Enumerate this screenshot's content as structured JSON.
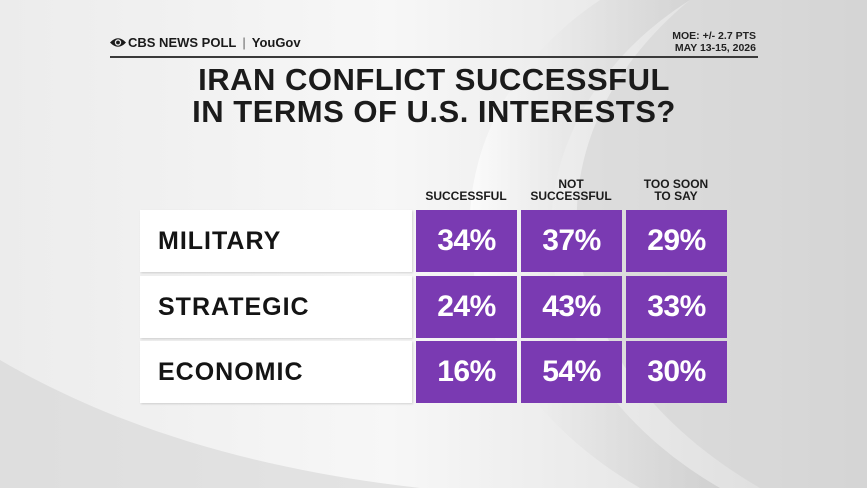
{
  "header": {
    "brand_left": "CBS NEWS POLL",
    "brand_right": "YouGov",
    "moe": "MOE: +/- 2.7 PTS",
    "dates": "MAY 13-15, 2026"
  },
  "colors": {
    "cell": "#7a3ab2",
    "label_bg": "#ffffff",
    "text": "#1b1b1b"
  },
  "chart_data": {
    "type": "table",
    "title": "IRAN CONFLICT SUCCESSFUL IN TERMS OF U.S. INTERESTS?",
    "title_lines": [
      "IRAN CONFLICT SUCCESSFUL",
      "IN TERMS OF U.S. INTERESTS?"
    ],
    "columns": [
      "SUCCESSFUL",
      "NOT SUCCESSFUL",
      "TOO SOON TO SAY"
    ],
    "column_lines": [
      [
        "SUCCESSFUL"
      ],
      [
        "NOT",
        "SUCCESSFUL"
      ],
      [
        "TOO SOON",
        "TO SAY"
      ]
    ],
    "rows": [
      {
        "label": "MILITARY",
        "values": [
          34,
          37,
          29
        ]
      },
      {
        "label": "STRATEGIC",
        "values": [
          24,
          43,
          33
        ]
      },
      {
        "label": "ECONOMIC",
        "values": [
          16,
          54,
          30
        ]
      }
    ],
    "unit": "%"
  }
}
